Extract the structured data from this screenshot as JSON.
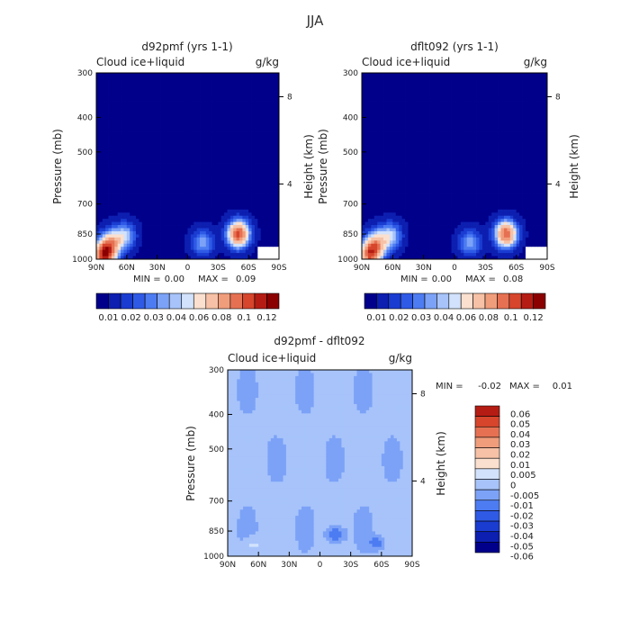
{
  "page": {
    "title": "JJA"
  },
  "colors": {
    "ramp": [
      "#00008b",
      "#0d1fb0",
      "#1a3cd1",
      "#2f5ae6",
      "#4d7cf2",
      "#7ca2f7",
      "#a7c3fa",
      "#d2e2fc",
      "#fbe0cf",
      "#f6c1a6",
      "#f09d7c",
      "#e67152",
      "#d6452c",
      "#b51d14",
      "#8b0000"
    ]
  },
  "chart_data": [
    {
      "type": "heatmap",
      "title": "d92pmf (yrs 1-1)",
      "field_label": "Cloud ice+liquid",
      "units": "g/kg",
      "ylabel": "Pressure (mb)",
      "ylabel_right": "Height (km)",
      "x_ticks": [
        "90N",
        "60N",
        "30N",
        "0",
        "30S",
        "60S",
        "90S"
      ],
      "y_ticks": [
        300,
        400,
        500,
        700,
        850,
        1000
      ],
      "y_right_ticks": [
        "8",
        "4"
      ],
      "ylim": [
        1000,
        300
      ],
      "stats": {
        "min_label": "MIN =",
        "min": "0.00",
        "max_label": "MAX =",
        "max": "0.09"
      },
      "colorbar_labels": [
        "0.01",
        "0.02",
        "0.03",
        "0.04",
        "0.06",
        "0.08",
        "0.1",
        "0.12"
      ],
      "features": [
        {
          "lat": 75,
          "p": 900,
          "amp": 0.045
        },
        {
          "lat": 82,
          "p": 970,
          "amp": 0.09
        },
        {
          "lat": 62,
          "p": 860,
          "amp": 0.03
        },
        {
          "lat": -50,
          "p": 850,
          "amp": 0.08
        },
        {
          "lat": -15,
          "p": 900,
          "amp": 0.025
        }
      ]
    },
    {
      "type": "heatmap",
      "title": "dflt092 (yrs 1-1)",
      "field_label": "Cloud ice+liquid",
      "units": "g/kg",
      "ylabel": "Pressure (mb)",
      "ylabel_right": "Height (km)",
      "x_ticks": [
        "90N",
        "60N",
        "30N",
        "0",
        "30S",
        "60S",
        "90S"
      ],
      "y_ticks": [
        300,
        400,
        500,
        700,
        850,
        1000
      ],
      "y_right_ticks": [
        "8",
        "4"
      ],
      "ylim": [
        1000,
        300
      ],
      "stats": {
        "min_label": "MIN =",
        "min": "0.00",
        "max_label": "MAX =",
        "max": "0.08"
      },
      "colorbar_labels": [
        "0.01",
        "0.02",
        "0.03",
        "0.04",
        "0.06",
        "0.08",
        "0.1",
        "0.12"
      ],
      "features": [
        {
          "lat": 75,
          "p": 900,
          "amp": 0.045
        },
        {
          "lat": 82,
          "p": 970,
          "amp": 0.075
        },
        {
          "lat": 62,
          "p": 860,
          "amp": 0.03
        },
        {
          "lat": -50,
          "p": 850,
          "amp": 0.075
        },
        {
          "lat": -15,
          "p": 900,
          "amp": 0.025
        }
      ]
    },
    {
      "type": "heatmap",
      "title": "d92pmf - dflt092",
      "field_label": "Cloud ice+liquid",
      "units": "g/kg",
      "ylabel": "Pressure (mb)",
      "ylabel_right": "Height (km)",
      "x_ticks": [
        "90N",
        "60N",
        "30N",
        "0",
        "30S",
        "60S",
        "90S"
      ],
      "y_ticks": [
        300,
        400,
        500,
        700,
        850,
        1000
      ],
      "y_right_ticks": [
        "8",
        "4"
      ],
      "ylim": [
        1000,
        300
      ],
      "stats": {
        "min_label": "MIN =",
        "min": "-0.02",
        "max_label": "MAX =",
        "max": "0.01"
      },
      "colorbar_labels": [
        "0.06",
        "0.05",
        "0.04",
        "0.03",
        "0.02",
        "0.01",
        "0.005",
        "0",
        "-0.005",
        "-0.01",
        "-0.02",
        "-0.03",
        "-0.04",
        "-0.05",
        "-0.06"
      ]
    }
  ]
}
